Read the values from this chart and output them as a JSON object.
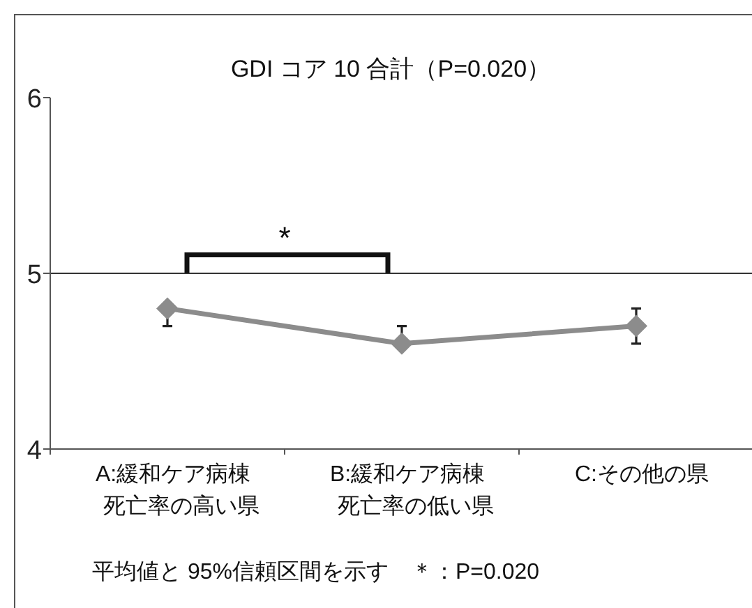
{
  "chart_data": {
    "type": "line",
    "title": "GDI コア 10 合計（P=0.020）",
    "categories": [
      "A:緩和ケア病棟死亡率の高い県",
      "B:緩和ケア病棟死亡率の低い県",
      "C:その他の県"
    ],
    "series": [
      {
        "color": "#8c8c8c",
        "values": [
          4.8,
          4.6,
          4.7
        ],
        "errors": [
          [
            4.7,
            4.8
          ],
          [
            4.6,
            4.7
          ],
          [
            4.6,
            4.8
          ]
        ]
      }
    ],
    "ylim": [
      4,
      6
    ],
    "yticks": [
      4,
      5,
      6
    ],
    "marker": "diamond",
    "line_style": "solid",
    "grid": false,
    "ref_lines": [
      {
        "axis": "y",
        "value": 5,
        "color": "#333333"
      }
    ],
    "annotations": [
      "*",
      "平均値と 95%信頼区間を示す　＊：P=0.020"
    ]
  }
}
